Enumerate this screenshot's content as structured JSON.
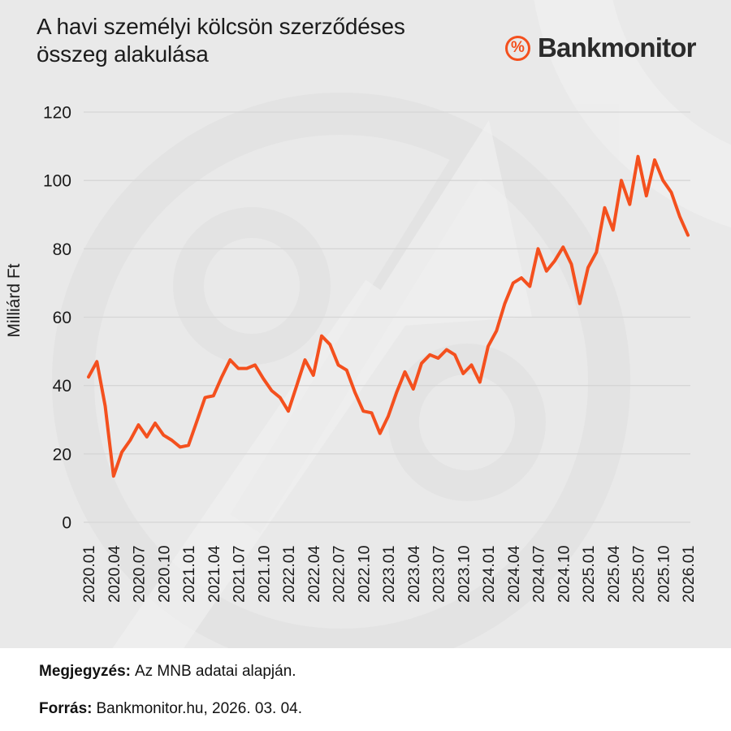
{
  "colors": {
    "background": "#e9e9e9",
    "line": "#f4501e",
    "grid": "#d6d6d6",
    "text": "#1a1a1a",
    "brand_dark": "#2b2b2b"
  },
  "header": {
    "title_line1": "A havi személyi kölcsön szerződéses",
    "title_line2": "összeg alakulása",
    "brand": {
      "icon": "%",
      "name": "Bankmonitor"
    }
  },
  "chart_data": {
    "type": "line",
    "title": "A havi személyi kölcsön szerződéses összeg alakulása",
    "xlabel": "",
    "ylabel": "Milliárd Ft",
    "ylim": [
      0,
      120
    ],
    "yticks": [
      0,
      20,
      40,
      60,
      80,
      100,
      120
    ],
    "grid": true,
    "legend": "none",
    "xtick_every": 3,
    "x": [
      "2020.01",
      "2020.02",
      "2020.03",
      "2020.04",
      "2020.05",
      "2020.06",
      "2020.07",
      "2020.08",
      "2020.09",
      "2020.10",
      "2020.11",
      "2020.12",
      "2021.01",
      "2021.02",
      "2021.03",
      "2021.04",
      "2021.05",
      "2021.06",
      "2021.07",
      "2021.08",
      "2021.09",
      "2021.10",
      "2021.11",
      "2021.12",
      "2022.01",
      "2022.02",
      "2022.03",
      "2022.04",
      "2022.05",
      "2022.06",
      "2022.07",
      "2022.08",
      "2022.09",
      "2022.10",
      "2022.11",
      "2022.12",
      "2023.01",
      "2023.02",
      "2023.03",
      "2023.04",
      "2023.05",
      "2023.06",
      "2023.07",
      "2023.08",
      "2023.09",
      "2023.10",
      "2023.11",
      "2023.12",
      "2024.01",
      "2024.02",
      "2024.03",
      "2024.04",
      "2024.05",
      "2024.06",
      "2024.07",
      "2024.08",
      "2024.09",
      "2024.10",
      "2024.11",
      "2024.12",
      "2025.01",
      "2025.02",
      "2025.03",
      "2025.04",
      "2025.05",
      "2025.06",
      "2025.07",
      "2025.08",
      "2025.09",
      "2025.10",
      "2025.11",
      "2025.12",
      "2026.01"
    ],
    "series": [
      {
        "name": "Havi személyi kölcsön szerződéses összeg",
        "values": [
          42.5,
          47,
          34,
          13.5,
          20.5,
          24,
          28.5,
          25,
          29,
          25.5,
          24,
          22,
          22.5,
          29.5,
          36.5,
          37,
          42.5,
          47.5,
          45,
          45,
          46,
          42,
          38.5,
          36.5,
          32.5,
          40,
          47.5,
          43,
          54.5,
          52,
          46,
          44.5,
          38,
          32.5,
          32,
          26,
          31,
          38,
          44,
          39,
          46.5,
          49,
          48,
          50.5,
          49,
          43.5,
          46,
          41,
          51.5,
          56,
          64,
          70,
          71.5,
          69,
          80,
          73.5,
          76.5,
          80.5,
          75.5,
          64,
          74.5,
          79,
          92,
          85.5,
          100,
          93,
          107,
          95.5,
          106,
          100,
          96.5,
          89.5,
          84
        ]
      }
    ],
    "line_color": "#f4501e"
  },
  "footer": {
    "note_label": "Megjegyzés:",
    "note_text": "Az MNB adatai alapján.",
    "source_label": "Forrás:",
    "source_text": "Bankmonitor.hu, 2026. 03. 04."
  }
}
